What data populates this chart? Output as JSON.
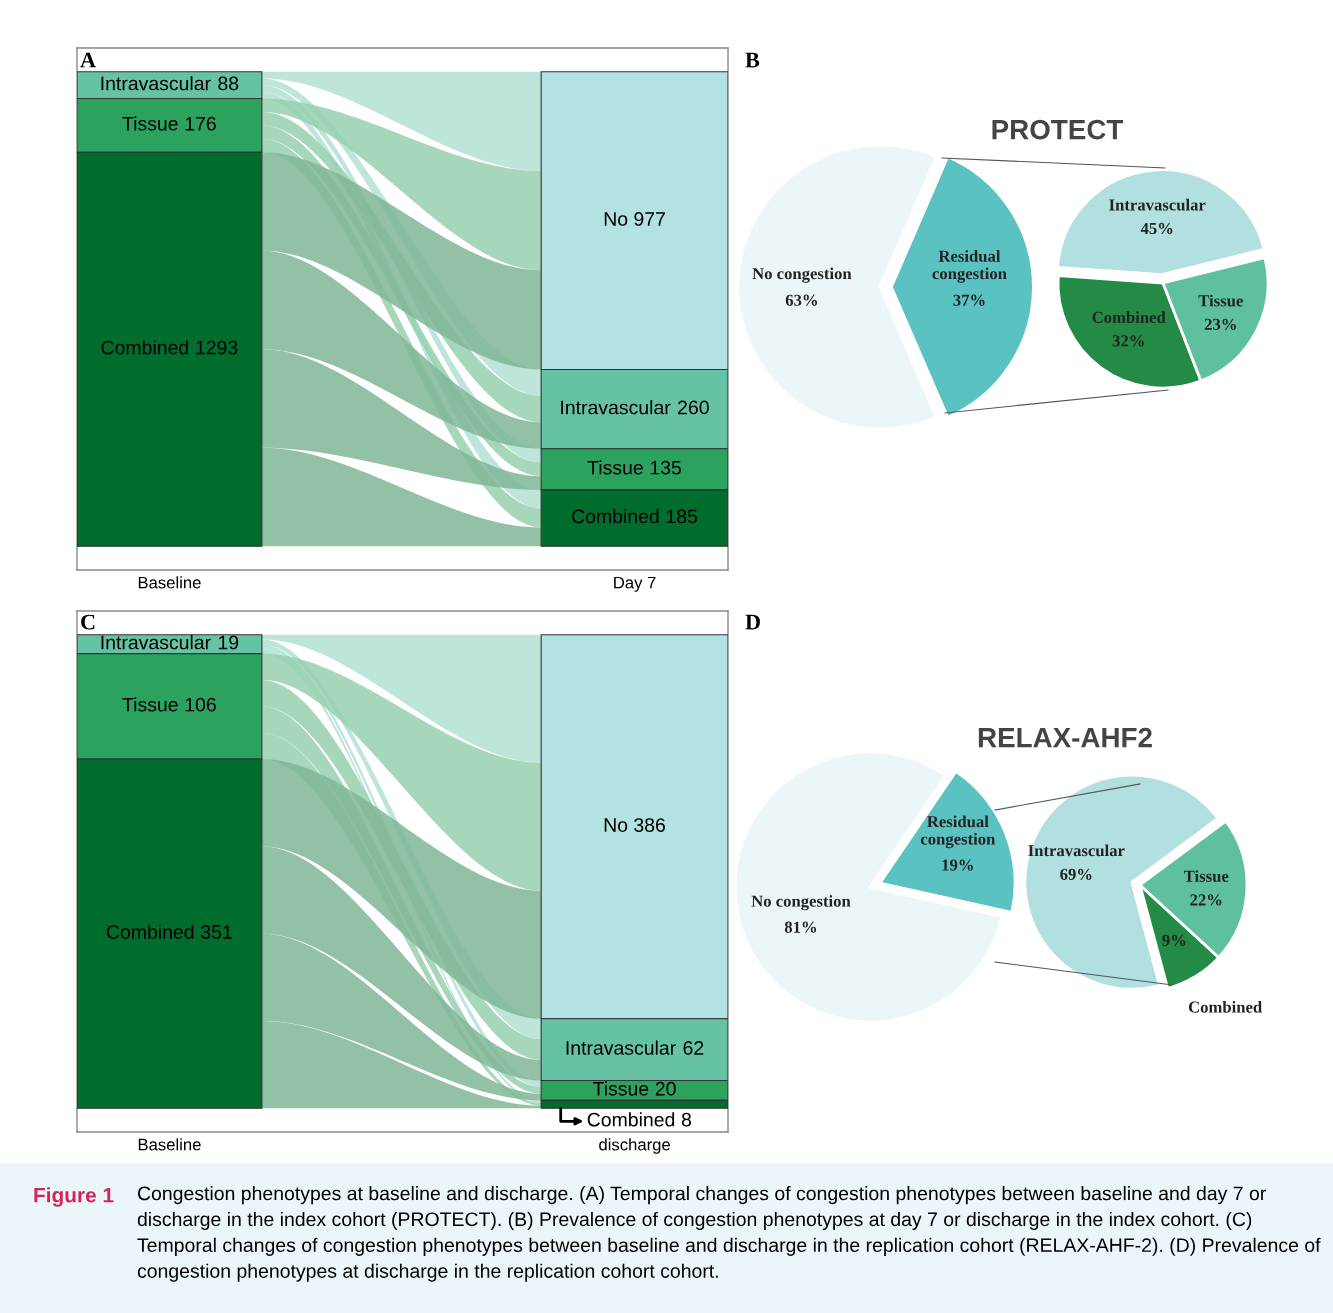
{
  "chart_data": [
    {
      "type": "other",
      "categories": [
        "Baseline",
        "Day 7"
      ],
      "annotations": [
        "A",
        "Figure 1",
        "Congestion phenotypes at baseline and discharge. (A) Temporal changes of congestion phenotypes between baseline and day 7 or discharge in the index cohort (PROTECT). (B) Prevalence of congestion phenotypes at day 7 or discharge in the index cohort. (C) Temporal changes of congestion phenotypes between baseline and discharge in the replication cohort (RELAX-AHF-2). (D) Prevalence of congestion phenotypes at discharge in the replication cohort cohort."
      ],
      "series": [
        {
          "name": "No",
          "color": "#b2e2e2",
          "values": [
            null,
            977
          ]
        },
        {
          "name": "Intravascular",
          "color": "#66c2a4",
          "values": [
            88,
            260
          ]
        },
        {
          "name": "Tissue",
          "color": "#2ca25f",
          "values": [
            176,
            135
          ]
        },
        {
          "name": "Combined",
          "color": "#006d2c",
          "values": [
            1293,
            185
          ]
        }
      ],
      "data_labels": true
    },
    {
      "type": "pie",
      "title": "PROTECT",
      "annotations": [
        "B"
      ],
      "categories": [
        "No congestion",
        "Residual\ncongestion"
      ],
      "values": [
        63,
        37
      ],
      "colors": [
        "#eaf6f7",
        "#5bc2c2"
      ],
      "value_labels": [
        "63%",
        "37%"
      ]
    },
    {
      "type": "pie",
      "categories": [
        "Intravascular",
        "Combined",
        "Tissue"
      ],
      "values": [
        45,
        32,
        23
      ],
      "colors": [
        "#b2e0e0",
        "#238b45",
        "#5fc0a0"
      ],
      "value_labels": [
        "45%",
        "32%",
        "23%"
      ]
    },
    {
      "type": "other",
      "categories": [
        "Baseline",
        "discharge"
      ],
      "annotations": [
        "C"
      ],
      "series": [
        {
          "name": "No",
          "color": "#b2e2e2",
          "values": [
            null,
            386
          ]
        },
        {
          "name": "Intravascular",
          "color": "#66c2a4",
          "values": [
            19,
            62
          ]
        },
        {
          "name": "Tissue",
          "color": "#2ca25f",
          "values": [
            106,
            20
          ]
        },
        {
          "name": "Combined",
          "color": "#006d2c",
          "values": [
            351,
            8
          ]
        }
      ],
      "data_labels": true
    },
    {
      "type": "pie",
      "title": "RELAX-AHF2",
      "annotations": [
        "D"
      ],
      "categories": [
        "No congestion",
        "Residual\ncongestion"
      ],
      "values": [
        81,
        19
      ],
      "colors": [
        "#eaf6f7",
        "#5bc2c2"
      ],
      "value_labels": [
        "81%",
        "19%"
      ]
    },
    {
      "type": "pie",
      "categories": [
        "Combined",
        "Tissue",
        "Intravascular"
      ],
      "values": [
        9,
        22,
        69
      ],
      "colors": [
        "#238b45",
        "#5fc0a0",
        "#b2e0e0"
      ],
      "value_labels": [
        "9%",
        "22%",
        "69%"
      ]
    }
  ]
}
